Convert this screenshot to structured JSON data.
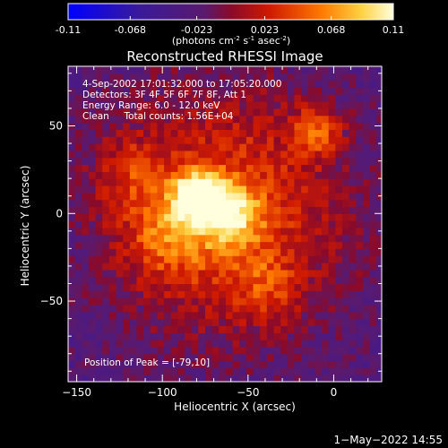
{
  "colorbar": {
    "ticks": [
      "-0.11",
      "-0.068",
      "-0.023",
      "0.023",
      "0.068",
      "0.11"
    ],
    "tick_values": [
      -0.11,
      -0.068,
      -0.023,
      0.023,
      0.068,
      0.11
    ],
    "range": [
      -0.11,
      0.11
    ],
    "unit_label_parts": {
      "a": "(photons cm",
      "b": "-2",
      "c": " s",
      "d": "-1",
      "e": " asec",
      "f": "-2",
      "g": ")"
    }
  },
  "chart_data": {
    "type": "heatmap",
    "title": "Reconstructed RHESSI Image",
    "xlabel": "Heliocentric X (arcsec)",
    "ylabel": "Heliocentric Y (arcsec)",
    "xlim": [
      -155,
      28
    ],
    "ylim": [
      -96,
      84
    ],
    "x_ticks": [
      -150,
      -100,
      -50,
      0
    ],
    "x_tick_labels": [
      "−150",
      "−100",
      "−50",
      "0"
    ],
    "y_ticks": [
      -50,
      0,
      50
    ],
    "y_tick_labels": [
      "−50",
      "0",
      "50"
    ],
    "peak_position": [
      -79,
      10
    ],
    "info_lines": [
      "4-Sep-2002 17:01:32.000 to 17:05:20.000",
      "Detectors: 3F 4F 5F 6F 7F 8F, Att 1",
      "Energy Range: 6.0 - 12.0 keV",
      "Clean     Total counts: 1.56E+04"
    ],
    "peak_label": "Position of Peak = [-79,10]",
    "colors": {
      "background": "#000000",
      "colormap_low": "#0000ff",
      "colormap_mid": "#5a1a6e",
      "colormap_high": "#ffffcc"
    }
  },
  "timestamp": "1−May−2022 14:55"
}
